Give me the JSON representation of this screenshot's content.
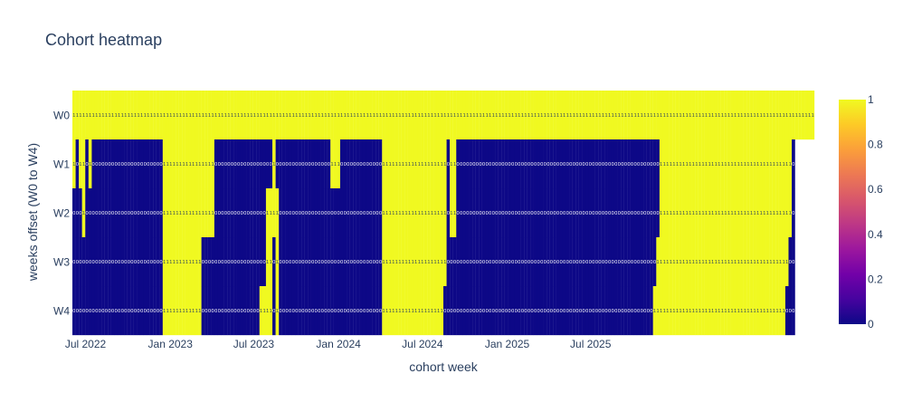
{
  "chart_data": {
    "type": "heatmap",
    "title": "Cohort heatmap",
    "xlabel": "cohort week",
    "ylabel": "weeks offset (W0 to W4)",
    "y_categories": [
      "W0",
      "W1",
      "W2",
      "W3",
      "W4"
    ],
    "x_start": "2022-06-06",
    "x_step_days": 7,
    "x_ticks": [
      "Jul 2022",
      "Jan 2023",
      "Jul 2023",
      "Jan 2024",
      "Jul 2024",
      "Jan 2025",
      "Jul 2025"
    ],
    "colorbar": {
      "min": 0,
      "max": 1,
      "ticks": [
        "0",
        "0.2",
        "0.4",
        "0.6",
        "0.8",
        "1"
      ]
    },
    "colors": {
      "low": "#0d0887",
      "high": "#f0f921",
      "text": "#2a3f5f"
    },
    "rows": {
      "W0": "11111111111111111111111111111111111111111111111111111111111111111111111111111111111111111111111111111111111111111111111111111111111111111111111111111111111111111111111111111111111111111111111111111111111111111111111111111111111111",
      "W1": "10110100000000000000000000001111111111111111000000000000000000100000000000000000111000000000000011111111111111111111011000000000000000000000000000000000000000000000000000000000000000111111111111111111111111111111111111111110",
      "W2": "00010000000000000000000000001111111111111111000000000000000011110000000000000000000000000000000011111111111111111111011000000000000000000000000000000000000000000000000000000000000000111111111111111111111111111111111111111110",
      "W3": "00000000000000000000000000001111111111110000000000000000000011010000000000000000000000000000000011111111111111111111000000000000000000000000000000000000000000000000000000000000000001111111111111111111111111111111111111111100",
      "W4": "00000000000000000000000000001111111111110000000000000000001111010000000000000000000000000000000011111111111111111110000000000000000000000000000000000000000000000000000000000000000011111111111111111111111111111111111111111000"
    }
  }
}
